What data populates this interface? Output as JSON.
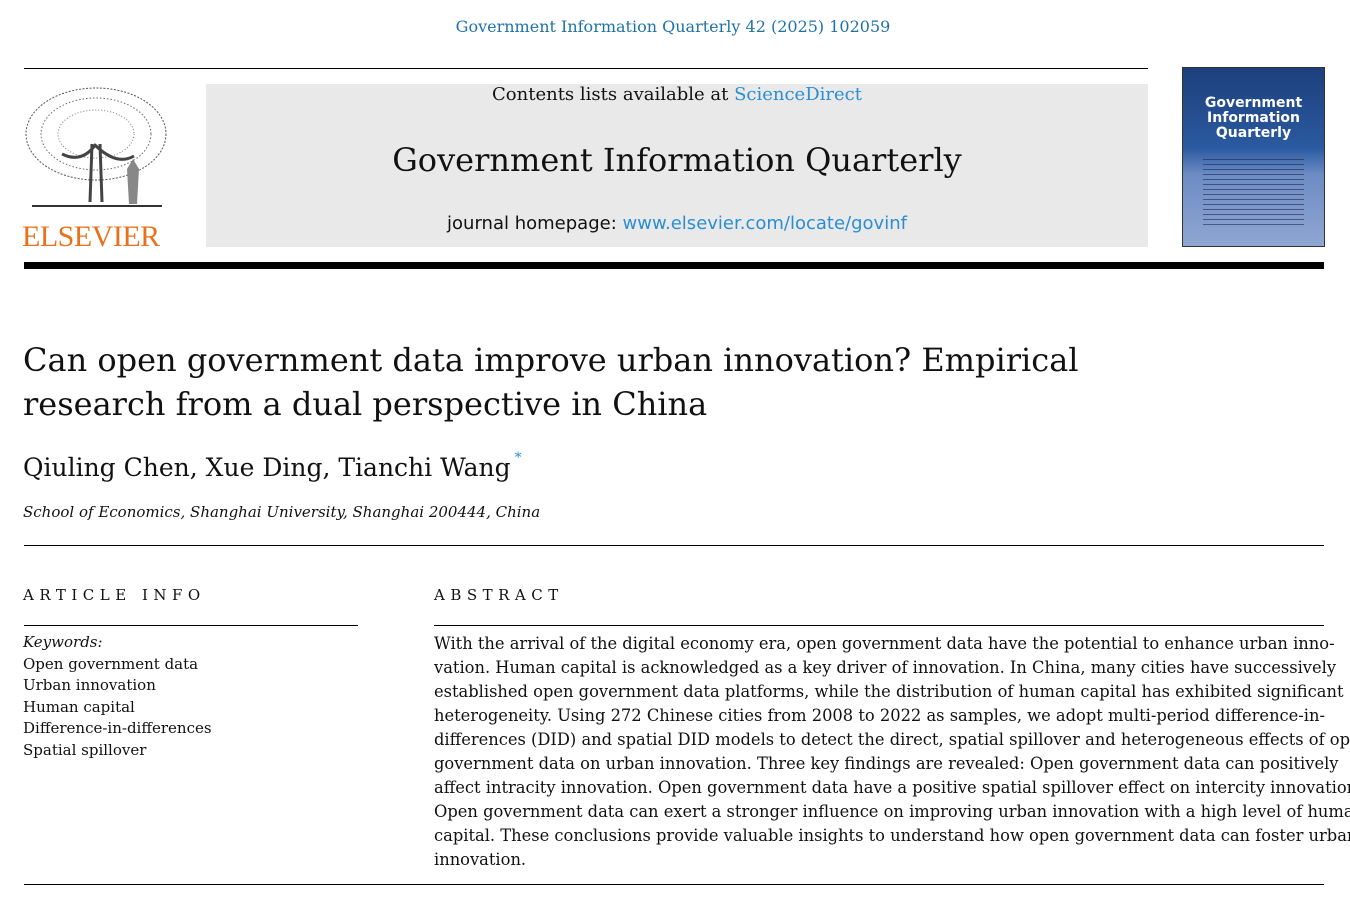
{
  "citation": "Government Information Quarterly 42 (2025) 102059",
  "publisher_logo": "ELSEVIER",
  "header": {
    "contents_prefix": "Contents lists available at ",
    "contents_link": "ScienceDirect",
    "journal": "Government Information Quarterly",
    "homepage_prefix": "journal homepage: ",
    "homepage_link": "www.elsevier.com/locate/govinf"
  },
  "cover": {
    "title": "Government Information Quarterly"
  },
  "article": {
    "title": "Can open government data improve urban innovation? Empirical research from a dual perspective in China",
    "authors": [
      "Qiuling Chen",
      ", ",
      "Xue Ding",
      ", ",
      "Tianchi Wang"
    ],
    "corresponding_mark": "*",
    "affiliation": "School of Economics, Shanghai University, Shanghai 200444, China"
  },
  "article_info": {
    "heading": "ARTICLE INFO",
    "keywords_label": "Keywords:",
    "keywords": [
      "Open government data",
      "Urban innovation",
      "Human capital",
      "Difference-in-differences",
      "Spatial spillover"
    ]
  },
  "abstract": {
    "heading": "ABSTRACT",
    "lines": [
      "With the arrival of the digital economy era, open government data have the potential to enhance urban inno-",
      "vation. Human capital is acknowledged as a key driver of innovation. In China, many cities have successively",
      "established open government data platforms, while the distribution of human capital has exhibited significant",
      "heterogeneity. Using 272 Chinese cities from 2008 to 2022 as samples, we adopt multi-period difference-in-",
      "differences (DID) and spatial DID models to detect the direct, spatial spillover and heterogeneous effects of open",
      "government data on urban innovation. Three key findings are revealed: Open government data can positively",
      "affect intracity innovation. Open government data have a positive spatial spillover effect on intercity innovation.",
      "Open government data can exert a stronger influence on improving urban innovation with a high level of human",
      "capital. These conclusions provide valuable insights to understand how open government data can foster urban",
      "innovation."
    ]
  },
  "colors": {
    "link": "#2b8ed3",
    "citation": "#1f72a8",
    "elsevier_orange": "#e9711c",
    "header_box": "#e9e9e9"
  }
}
